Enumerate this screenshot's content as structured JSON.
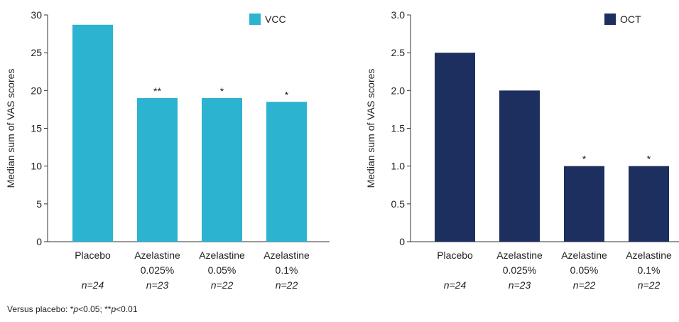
{
  "footnote": {
    "prefix": "Versus placebo: *",
    "p1": "p",
    "mid": "<0.05; **",
    "p2": "p",
    "suffix": "<0.01"
  },
  "chart_data": [
    {
      "type": "bar",
      "legend": "VCC",
      "legend_placement": "top-right",
      "color": "#2bb3d0",
      "ylabel": "Median sum of VAS scores",
      "ylim": [
        0,
        30
      ],
      "yticks": [
        "0",
        "5",
        "10",
        "15",
        "20",
        "25",
        "30"
      ],
      "categories": [
        {
          "line1": "Placebo",
          "line2": "",
          "n": "n=24"
        },
        {
          "line1": "Azelastine",
          "line2": "0.025%",
          "n": "n=23"
        },
        {
          "line1": "Azelastine",
          "line2": "0.05%",
          "n": "n=22"
        },
        {
          "line1": "Azelastine",
          "line2": "0.1%",
          "n": "n=22"
        }
      ],
      "values": [
        28.7,
        19.0,
        19.0,
        18.5
      ],
      "annotations": [
        "",
        "**",
        "*",
        "*"
      ],
      "grid": false
    },
    {
      "type": "bar",
      "legend": "OCT",
      "legend_placement": "top-right",
      "color": "#1c2f5e",
      "ylabel": "Median sum of VAS scores",
      "ylim": [
        0,
        3
      ],
      "yticks": [
        "0",
        "0.5",
        "1.0",
        "1.5",
        "2.0",
        "2.5",
        "3.0"
      ],
      "categories": [
        {
          "line1": "Placebo",
          "line2": "",
          "n": "n=24"
        },
        {
          "line1": "Azelastine",
          "line2": "0.025%",
          "n": "n=23"
        },
        {
          "line1": "Azelastine",
          "line2": "0.05%",
          "n": "n=22"
        },
        {
          "line1": "Azelastine",
          "line2": "0.1%",
          "n": "n=22"
        }
      ],
      "values": [
        2.5,
        2.0,
        1.0,
        1.0
      ],
      "annotations": [
        "",
        "",
        "*",
        "*"
      ],
      "grid": false
    }
  ]
}
